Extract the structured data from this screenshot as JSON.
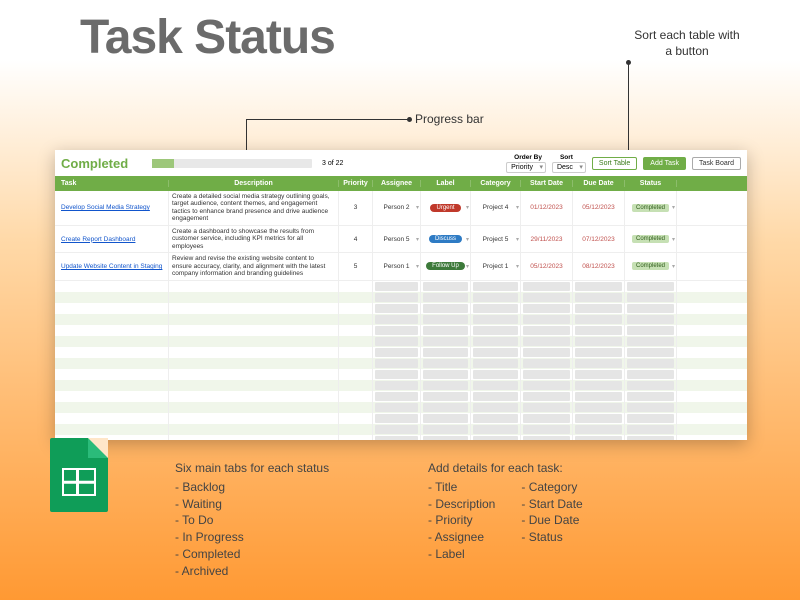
{
  "title": "Task Status",
  "callouts": {
    "sort": "Sort each table with a button",
    "progress": "Progress bar"
  },
  "sheet": {
    "status_title": "Completed",
    "progress": {
      "current": 3,
      "total": 22,
      "text": "3 of 22",
      "pct": 14
    },
    "orderby_label": "Order By",
    "orderby_value": "Priority",
    "sort_label": "Sort",
    "sort_value": "Desc",
    "buttons": {
      "sort": "Sort Table",
      "add": "Add Task",
      "board": "Task Board"
    },
    "columns": [
      "Task",
      "Description",
      "Priority",
      "Assignee",
      "Label",
      "Category",
      "Start Date",
      "Due Date",
      "Status"
    ],
    "rows": [
      {
        "task": "Develop Social Media Strategy",
        "desc": "Create a detailed social media strategy outlining goals, target audience, content themes, and engagement tactics to enhance brand presence and drive audience engagement",
        "priority": "3",
        "assignee": "Person 2",
        "label": {
          "text": "Urgent",
          "color": "#c0392b"
        },
        "category": "Project 4",
        "start": "01/12/2023",
        "due": "05/12/2023",
        "status": "Completed"
      },
      {
        "task": "Create Report Dashboard",
        "desc": "Create a dashboard to showcase the results from customer service, including KPI metrics for all employees",
        "priority": "4",
        "assignee": "Person 5",
        "label": {
          "text": "Discuss",
          "color": "#2e7bc4"
        },
        "category": "Project 5",
        "start": "29/11/2023",
        "due": "07/12/2023",
        "status": "Completed"
      },
      {
        "task": "Update Website Content in Staging",
        "desc": "Review and revise the existing website content to ensure accuracy, clarity, and alignment with the latest company information and branding guidelines",
        "priority": "5",
        "assignee": "Person 1",
        "label": {
          "text": "Follow Up",
          "color": "#3d7a3a"
        },
        "category": "Project 1",
        "start": "05/12/2023",
        "due": "08/12/2023",
        "status": "Completed"
      }
    ]
  },
  "bottom": {
    "left_header": "Six main tabs for each status",
    "left_items": [
      "Backlog",
      "Waiting",
      "To Do",
      "In Progress",
      "Completed",
      "Archived"
    ],
    "right_header": "Add details for each task:",
    "right_col1": [
      "Title",
      "Description",
      "Priority",
      "Assignee",
      "Label"
    ],
    "right_col2": [
      "Category",
      "Start Date",
      "Due Date",
      "Status"
    ]
  },
  "colors": {
    "header_green": "#70ad47",
    "title_gray": "#6b6b6b"
  }
}
